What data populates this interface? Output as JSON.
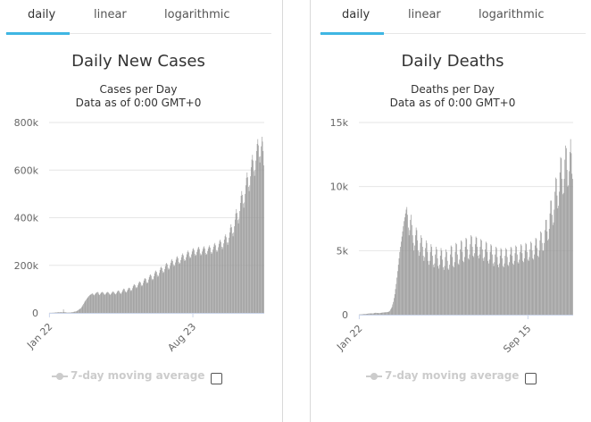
{
  "panels": [
    {
      "tabs": [
        "daily",
        "linear",
        "logarithmic"
      ],
      "active_tab": 0,
      "title": "Daily New Cases",
      "subtitle_lines": [
        "Cases per Day",
        "Data as of 0:00 GMT+0"
      ],
      "legend_label": "7-day moving average",
      "legend_checked": false
    },
    {
      "tabs": [
        "daily",
        "linear",
        "logarithmic"
      ],
      "active_tab": 0,
      "title": "Daily Deaths",
      "subtitle_lines": [
        "Deaths per Day",
        "Data as of 0:00 GMT+0"
      ],
      "legend_label": "7-day moving average",
      "legend_checked": false
    }
  ],
  "chart_data": [
    {
      "type": "bar",
      "title": "Daily New Cases",
      "subtitle": "Cases per Day",
      "bar_color": "#999999",
      "grid": true,
      "ylim": [
        0,
        800000
      ],
      "yticks": [
        0,
        200000,
        400000,
        600000,
        800000
      ],
      "ytick_labels": [
        "0",
        "200k",
        "400k",
        "600k",
        "800k"
      ],
      "xtick_labels": [
        {
          "label": "Jan 22",
          "index": 0
        },
        {
          "label": "Aug 23",
          "index": 214
        }
      ],
      "series": [
        {
          "values": [
            500,
            500,
            600,
            600,
            700,
            800,
            1000,
            1200,
            1500,
            1700,
            2000,
            2300,
            2600,
            2800,
            3000,
            3000,
            3000,
            3100,
            3000,
            3000,
            3000,
            15000,
            4000,
            3000,
            3000,
            2000,
            1500,
            1500,
            1500,
            1500,
            1500,
            1800,
            2000,
            2500,
            2800,
            3500,
            4000,
            5000,
            5500,
            6000,
            6500,
            8000,
            10000,
            12000,
            14000,
            16000,
            18000,
            20000,
            24000,
            28000,
            33000,
            38000,
            43000,
            48000,
            52000,
            56000,
            60000,
            64000,
            68000,
            71000,
            74000,
            76000,
            78000,
            80000,
            82000,
            80000,
            76000,
            74000,
            78000,
            82000,
            85000,
            87000,
            88000,
            85000,
            78000,
            75000,
            80000,
            84000,
            87000,
            88000,
            86000,
            82000,
            78000,
            76000,
            80000,
            84000,
            87000,
            88000,
            86000,
            82000,
            78000,
            76000,
            80000,
            84000,
            88000,
            90000,
            88000,
            84000,
            80000,
            78000,
            82000,
            88000,
            92000,
            94000,
            92000,
            86000,
            82000,
            80000,
            86000,
            92000,
            98000,
            102000,
            100000,
            92000,
            88000,
            86000,
            92000,
            98000,
            104000,
            106000,
            104000,
            96000,
            92000,
            96000,
            104000,
            112000,
            118000,
            120000,
            116000,
            108000,
            104000,
            108000,
            116000,
            124000,
            130000,
            132000,
            128000,
            118000,
            112000,
            116000,
            126000,
            136000,
            144000,
            146000,
            142000,
            130000,
            124000,
            128000,
            140000,
            150000,
            158000,
            162000,
            156000,
            144000,
            138000,
            142000,
            154000,
            166000,
            174000,
            178000,
            172000,
            160000,
            152000,
            156000,
            168000,
            180000,
            190000,
            194000,
            188000,
            176000,
            168000,
            172000,
            184000,
            196000,
            206000,
            210000,
            204000,
            190000,
            182000,
            186000,
            198000,
            210000,
            220000,
            226000,
            218000,
            204000,
            196000,
            200000,
            212000,
            224000,
            234000,
            238000,
            230000,
            214000,
            206000,
            210000,
            222000,
            234000,
            244000,
            250000,
            242000,
            226000,
            218000,
            222000,
            234000,
            246000,
            256000,
            262000,
            254000,
            238000,
            230000,
            234000,
            246000,
            258000,
            268000,
            272000,
            264000,
            248000,
            240000,
            244000,
            256000,
            266000,
            274000,
            278000,
            268000,
            250000,
            242000,
            246000,
            258000,
            268000,
            276000,
            280000,
            270000,
            252000,
            244000,
            248000,
            260000,
            270000,
            278000,
            284000,
            274000,
            256000,
            248000,
            254000,
            266000,
            278000,
            288000,
            294000,
            284000,
            264000,
            256000,
            262000,
            276000,
            290000,
            302000,
            308000,
            298000,
            278000,
            268000,
            276000,
            292000,
            308000,
            322000,
            330000,
            318000,
            296000,
            286000,
            296000,
            316000,
            338000,
            358000,
            372000,
            360000,
            334000,
            322000,
            338000,
            364000,
            392000,
            418000,
            436000,
            420000,
            390000,
            376000,
            396000,
            428000,
            462000,
            492000,
            512000,
            496000,
            460000,
            442000,
            464000,
            500000,
            536000,
            568000,
            590000,
            570000,
            530000,
            512000,
            536000,
            574000,
            612000,
            644000,
            664000,
            640000,
            596000,
            576000,
            600000,
            640000,
            680000,
            710000,
            730000,
            704000,
            656000,
            632000,
            658000,
            700000,
            740000,
            720000,
            680000,
            620000
          ]
        }
      ]
    },
    {
      "type": "bar",
      "title": "Daily Deaths",
      "subtitle": "Deaths per Day",
      "bar_color": "#999999",
      "grid": true,
      "ylim": [
        0,
        15000
      ],
      "yticks": [
        0,
        5000,
        10000,
        15000
      ],
      "ytick_labels": [
        "0",
        "5k",
        "10k",
        "15k"
      ],
      "xtick_labels": [
        {
          "label": "Jan 22",
          "index": 0
        },
        {
          "label": "Sep 15",
          "index": 237
        }
      ],
      "series": [
        {
          "values": [
            20,
            20,
            25,
            30,
            35,
            40,
            45,
            50,
            55,
            60,
            65,
            70,
            80,
            90,
            100,
            100,
            100,
            105,
            100,
            100,
            100,
            120,
            140,
            150,
            145,
            140,
            135,
            130,
            125,
            130,
            140,
            150,
            160,
            170,
            175,
            180,
            185,
            190,
            195,
            200,
            210,
            220,
            250,
            300,
            400,
            500,
            600,
            800,
            1000,
            1300,
            1600,
            2000,
            2400,
            2900,
            3400,
            3900,
            4400,
            4900,
            5300,
            5700,
            6100,
            6500,
            6900,
            7300,
            7600,
            7900,
            8200,
            8400,
            7800,
            6800,
            6200,
            6600,
            7400,
            7800,
            7000,
            6200,
            5600,
            5000,
            5400,
            6200,
            6800,
            6600,
            5800,
            5000,
            4600,
            4900,
            5600,
            6200,
            6000,
            5300,
            4600,
            4200,
            4500,
            5200,
            5800,
            5600,
            4900,
            4200,
            3900,
            4200,
            4900,
            5500,
            5300,
            4600,
            3900,
            3700,
            4000,
            4700,
            5300,
            5100,
            4400,
            3800,
            3600,
            3900,
            4600,
            5200,
            5000,
            4300,
            3700,
            3500,
            3800,
            4500,
            5100,
            4900,
            4200,
            3600,
            3500,
            3900,
            4700,
            5400,
            5300,
            4500,
            3800,
            3700,
            4100,
            4900,
            5600,
            5500,
            4700,
            4000,
            3900,
            4300,
            5100,
            5800,
            5700,
            4900,
            4200,
            4100,
            4500,
            5300,
            6000,
            5900,
            5100,
            4400,
            4300,
            4700,
            5500,
            6200,
            6100,
            5300,
            4600,
            4500,
            4800,
            5500,
            6100,
            6000,
            5300,
            4600,
            4400,
            4700,
            5300,
            5900,
            5800,
            5100,
            4400,
            4200,
            4500,
            5100,
            5700,
            5600,
            4900,
            4200,
            4000,
            4300,
            4900,
            5500,
            5400,
            4700,
            4000,
            3800,
            4100,
            4700,
            5300,
            5200,
            4500,
            3900,
            3700,
            4000,
            4600,
            5200,
            5100,
            4400,
            3800,
            3700,
            4000,
            4600,
            5200,
            5100,
            4500,
            3900,
            3800,
            4100,
            4700,
            5300,
            5200,
            4600,
            4000,
            3900,
            4200,
            4800,
            5400,
            5300,
            4700,
            4100,
            4000,
            4300,
            4900,
            5500,
            5400,
            4800,
            4200,
            4100,
            4400,
            5000,
            5600,
            5500,
            4900,
            4300,
            4200,
            4500,
            5100,
            5700,
            5600,
            5000,
            4400,
            4300,
            4700,
            5400,
            6000,
            5900,
            5200,
            4600,
            4500,
            5000,
            5800,
            6500,
            6400,
            5600,
            5000,
            5000,
            5600,
            6600,
            7400,
            7400,
            6500,
            5800,
            5900,
            6700,
            7900,
            8900,
            8900,
            7800,
            7000,
            7200,
            8200,
            9600,
            10700,
            10600,
            9300,
            8300,
            8500,
            9600,
            11100,
            12300,
            12200,
            10600,
            9400,
            9500,
            10600,
            12100,
            13200,
            13000,
            11300,
            10000,
            10100,
            11200,
            12700,
            13700,
            12600,
            11000,
            10600
          ]
        }
      ]
    }
  ]
}
